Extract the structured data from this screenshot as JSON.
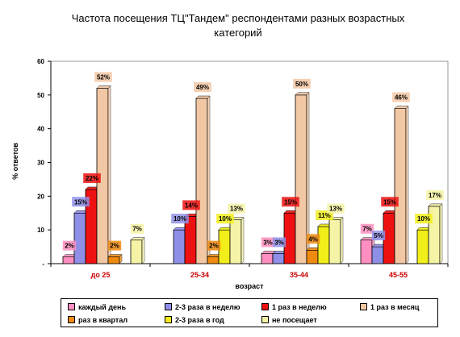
{
  "chart_data": {
    "type": "bar",
    "title": "Частота посещения ТЦ\"Тандем\" респондентами разных возрастных категорий",
    "xlabel": "возраст",
    "ylabel": "% ответов",
    "ylim": [
      0,
      60
    ],
    "yticks": [
      0,
      10,
      20,
      30,
      40,
      50,
      60
    ],
    "ytick_labels": [
      "-",
      "10",
      "20",
      "30",
      "40",
      "50",
      "60"
    ],
    "grid": false,
    "legend_position": "bottom",
    "categories": [
      "до 25",
      "25-34",
      "35-44",
      "45-55"
    ],
    "series": [
      {
        "name": "каждый день",
        "color": "#ff8fc0",
        "values": [
          2,
          null,
          3,
          7
        ],
        "labels": [
          "2%",
          "",
          "3%",
          "7%"
        ]
      },
      {
        "name": "2-3 раза в неделю",
        "color": "#8f8fe8",
        "values": [
          15,
          10,
          3,
          5
        ],
        "labels": [
          "15%",
          "10%",
          "3%",
          "5%"
        ]
      },
      {
        "name": "1 раз в неделю",
        "color": "#ee1111",
        "values": [
          22,
          14,
          15,
          15
        ],
        "labels": [
          "22%",
          "14%",
          "15%",
          "15%"
        ]
      },
      {
        "name": "1 раз в месяц",
        "color": "#f2c7a4",
        "values": [
          52,
          49,
          50,
          46
        ],
        "labels": [
          "52%",
          "49%",
          "50%",
          "46%"
        ]
      },
      {
        "name": "раз в квартал",
        "color": "#f08a10",
        "values": [
          2,
          2,
          4,
          null
        ],
        "labels": [
          "2%",
          "2%",
          "4%",
          ""
        ]
      },
      {
        "name": "2-3 раза в год",
        "color": "#f2ee1a",
        "values": [
          null,
          10,
          11,
          10
        ],
        "labels": [
          "",
          "10%",
          "11%",
          "10%"
        ]
      },
      {
        "name": "не посещает",
        "color": "#f5f3a6",
        "values": [
          7,
          13,
          13,
          17
        ],
        "labels": [
          "7%",
          "13%",
          "13%",
          "17%"
        ]
      }
    ]
  }
}
